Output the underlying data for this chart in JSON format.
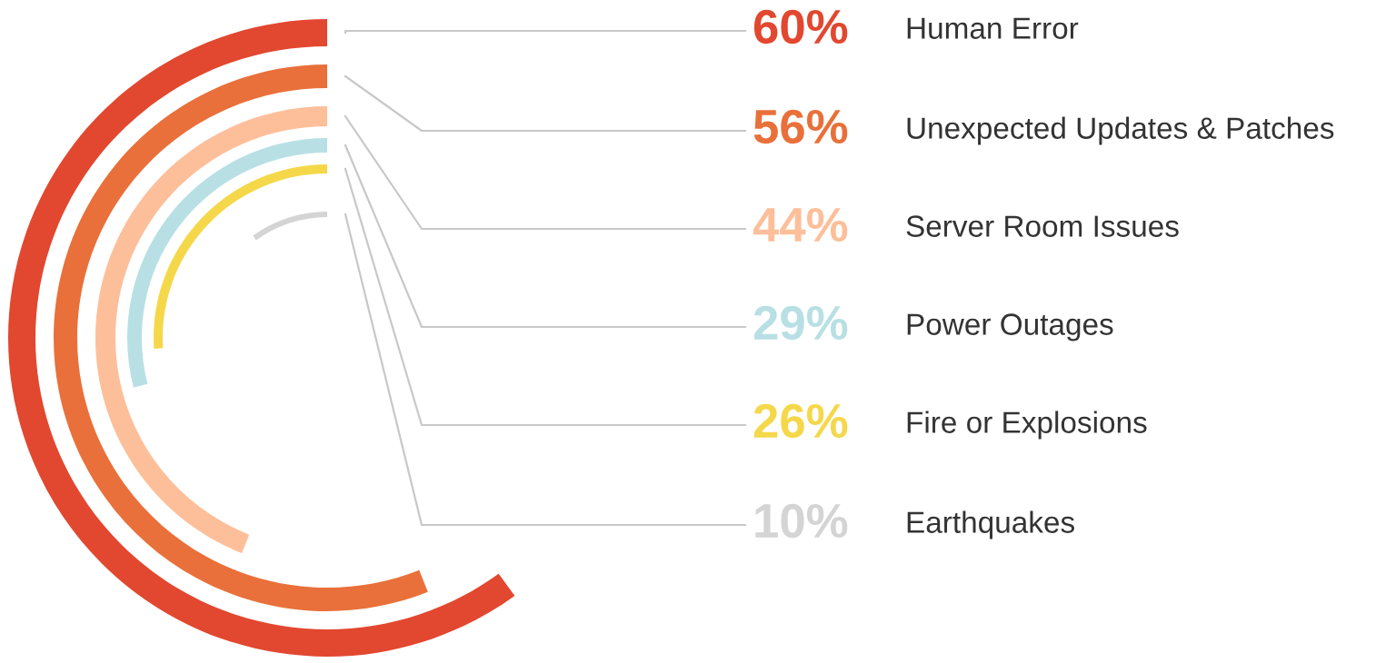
{
  "chart_data": {
    "type": "other",
    "categories": [
      "Human Error",
      "Unexpected Updates & Patches",
      "Server Room Issues",
      "Power Outages",
      "Fire or Explosions",
      "Earthquakes"
    ],
    "values": [
      60,
      56,
      44,
      29,
      26,
      10
    ],
    "value_labels": [
      "60%",
      "56%",
      "44%",
      "29%",
      "26%",
      "10%"
    ],
    "colors": [
      "#e2472f",
      "#e9703a",
      "#fdbf9a",
      "#b8e0e4",
      "#f5d84a",
      "#d4d4d4"
    ]
  }
}
